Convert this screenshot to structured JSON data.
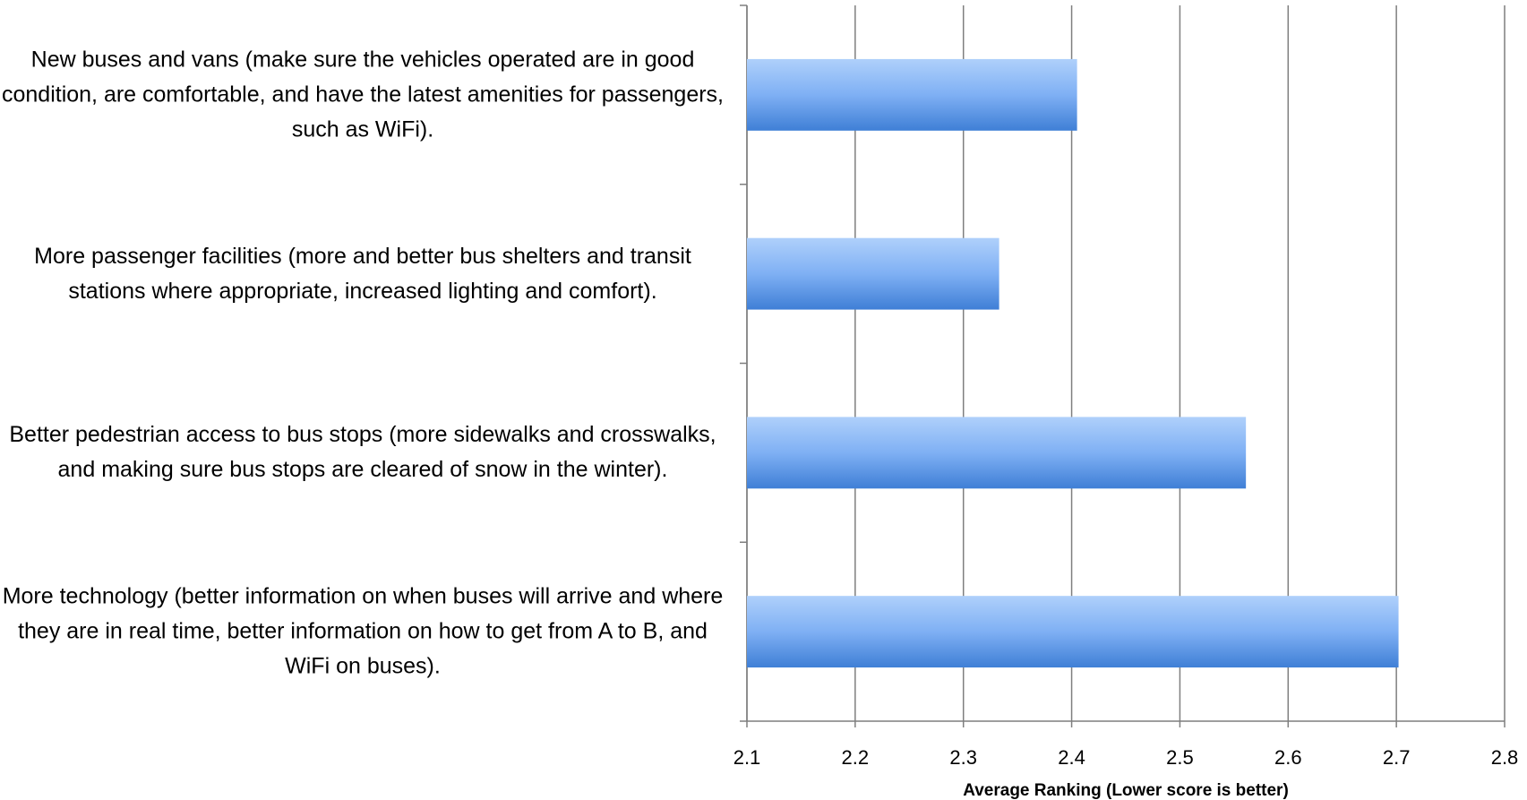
{
  "chart_data": {
    "type": "hbar",
    "categories": [
      "New buses and vans (make sure the vehicles operated are in good condition, are comfortable, and have the latest amenities for passengers, such as WiFi).",
      "More passenger facilities (more and better bus shelters and transit stations where appropriate, increased lighting and comfort).",
      "Better pedestrian access to bus stops (more sidewalks and crosswalks, and making sure bus stops are cleared of snow in the winter).",
      "More technology (better information on when buses will arrive and where they are in real time, better information on how to get from A to B, and WiFi on buses)."
    ],
    "values": [
      2.405,
      2.333,
      2.561,
      2.702
    ],
    "color": "#7fb0f4",
    "xlabel": "Average Ranking (Lower score is better)",
    "xlim": [
      2.1,
      2.8
    ],
    "xticks": [
      2.1,
      2.2,
      2.3,
      2.4,
      2.5,
      2.6,
      2.7,
      2.8
    ],
    "grid": true
  }
}
